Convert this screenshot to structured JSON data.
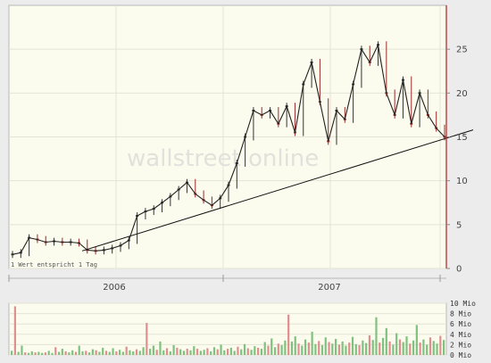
{
  "watermark": "wallstreet online",
  "note": "1 Wert entspricht 1 Tag",
  "chart_data": [
    {
      "type": "line",
      "title": "",
      "xlabel": "",
      "ylabel": "",
      "x_ticks": [
        "2006",
        "2007"
      ],
      "y_ticks": [
        0,
        5,
        10,
        15,
        20,
        25
      ],
      "ylim": [
        0,
        30
      ],
      "grid": true,
      "series": [
        {
          "values": [
            1.6,
            1.8,
            3.5,
            3.3,
            3.0,
            3.1,
            3.0,
            3.0,
            2.9,
            2.1,
            2.0,
            2.1,
            2.3,
            2.6,
            3.2,
            6.0,
            6.5,
            6.8,
            7.5,
            8.2,
            9.0,
            9.8,
            8.5,
            7.8,
            7.2,
            8.0,
            9.5,
            12.0,
            15.0,
            18.0,
            17.5,
            18.0,
            16.5,
            18.5,
            15.5,
            21.0,
            23.5,
            19.0,
            14.5,
            18.0,
            17.0,
            21.0,
            25.0,
            23.5,
            25.5,
            20.0,
            17.5,
            21.5,
            16.5,
            20.0,
            17.5,
            16.0,
            15.0
          ]
        }
      ],
      "trendline": {
        "start": 2.0,
        "end": 15.8
      }
    },
    {
      "type": "bar",
      "title": "",
      "y_ticks": [
        "10 Mio",
        "8 Mio",
        "6 Mio",
        "4 Mio",
        "2 Mio",
        "0 Mio"
      ],
      "ylim": [
        0,
        10
      ],
      "colors": {
        "up": "#7fc27f",
        "down": "#df8f8f"
      },
      "series": [
        {
          "values": [
            0.8,
            9.4,
            0.6,
            1.8,
            0.5,
            0.4,
            0.7,
            0.5,
            0.6,
            0.4,
            0.5,
            0.8,
            0.4,
            1.5,
            0.6,
            1.2,
            0.7,
            0.5,
            0.9,
            0.6,
            1.8,
            0.7,
            0.8,
            0.5,
            1.1,
            0.9,
            0.6,
            1.4,
            0.8,
            0.6,
            1.3,
            0.7,
            1.0,
            0.6,
            1.6,
            0.9,
            0.7,
            1.1,
            0.8,
            1.5,
            6.2,
            1.2,
            1.8,
            1.0,
            2.6,
            0.9,
            1.3,
            0.7,
            1.9,
            1.4,
            1.1,
            0.8,
            1.2,
            0.9,
            1.7,
            1.2,
            0.8,
            1.0,
            1.3,
            0.7,
            1.5,
            1.1,
            2.0,
            0.9,
            1.2,
            1.4,
            0.8,
            1.6,
            1.1,
            2.1,
            1.3,
            1.0,
            1.7,
            1.4,
            1.2,
            2.5,
            1.8,
            3.2,
            1.5,
            2.2,
            1.9,
            2.8,
            7.8,
            2.6,
            3.6,
            2.2,
            1.8,
            3.0,
            2.4,
            4.5,
            2.1,
            2.7,
            1.9,
            3.4,
            2.5,
            2.2,
            3.1,
            2.0,
            2.6,
            1.8,
            2.4,
            3.5,
            2.1,
            1.9,
            2.8,
            2.3,
            3.8,
            2.9,
            7.3,
            2.4,
            3.3,
            5.2,
            2.6,
            2.0,
            4.2,
            3.0,
            2.5,
            3.6,
            2.2,
            2.8,
            5.8,
            2.4,
            3.0,
            2.0,
            3.4,
            2.7,
            2.2,
            3.7,
            2.9
          ]
        }
      ]
    }
  ]
}
